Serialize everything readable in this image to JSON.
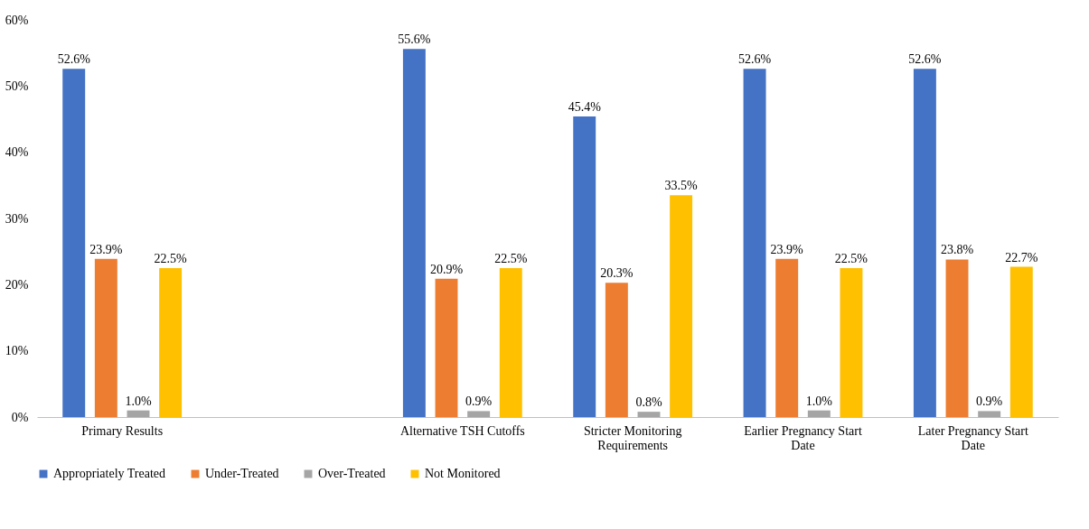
{
  "chart_data": {
    "type": "bar",
    "categories": [
      "Primary Results",
      null,
      "Alternative TSH Cutoffs",
      "Stricter Monitoring Requirements",
      "Earlier Pregnancy Start Date",
      "Later Pregnancy Start Date"
    ],
    "series": [
      {
        "name": "Appropriately Treated",
        "color": "#4472c4",
        "values": [
          52.6,
          null,
          55.6,
          45.4,
          52.6,
          52.6
        ],
        "value_labels": [
          "52.6%",
          null,
          "55.6%",
          "45.4%",
          "52.6%",
          "52.6%"
        ]
      },
      {
        "name": "Under-Treated",
        "color": "#ed7d31",
        "values": [
          23.9,
          null,
          20.9,
          20.3,
          23.9,
          23.8
        ],
        "value_labels": [
          "23.9%",
          null,
          "20.9%",
          "20.3%",
          "23.9%",
          "23.8%"
        ]
      },
      {
        "name": "Over-Treated",
        "color": "#a5a5a5",
        "values": [
          1.0,
          null,
          0.9,
          0.8,
          1.0,
          0.9
        ],
        "value_labels": [
          "1.0%",
          null,
          "0.9%",
          "0.8%",
          "1.0%",
          "0.9%"
        ]
      },
      {
        "name": "Not Monitored",
        "color": "#ffc000",
        "values": [
          22.5,
          null,
          22.5,
          33.5,
          22.5,
          22.7
        ],
        "value_labels": [
          "22.5%",
          null,
          "22.5%",
          "33.5%",
          "22.5%",
          "22.7%"
        ]
      }
    ],
    "ylim": [
      0,
      60
    ],
    "yticks": [
      {
        "value": 0,
        "label": "0%"
      },
      {
        "value": 10,
        "label": "10%"
      },
      {
        "value": 20,
        "label": "20%"
      },
      {
        "value": 30,
        "label": "30%"
      },
      {
        "value": 40,
        "label": "40%"
      },
      {
        "value": 50,
        "label": "50%"
      },
      {
        "value": 60,
        "label": "60%"
      }
    ],
    "grid": false,
    "legend": "bottom"
  }
}
